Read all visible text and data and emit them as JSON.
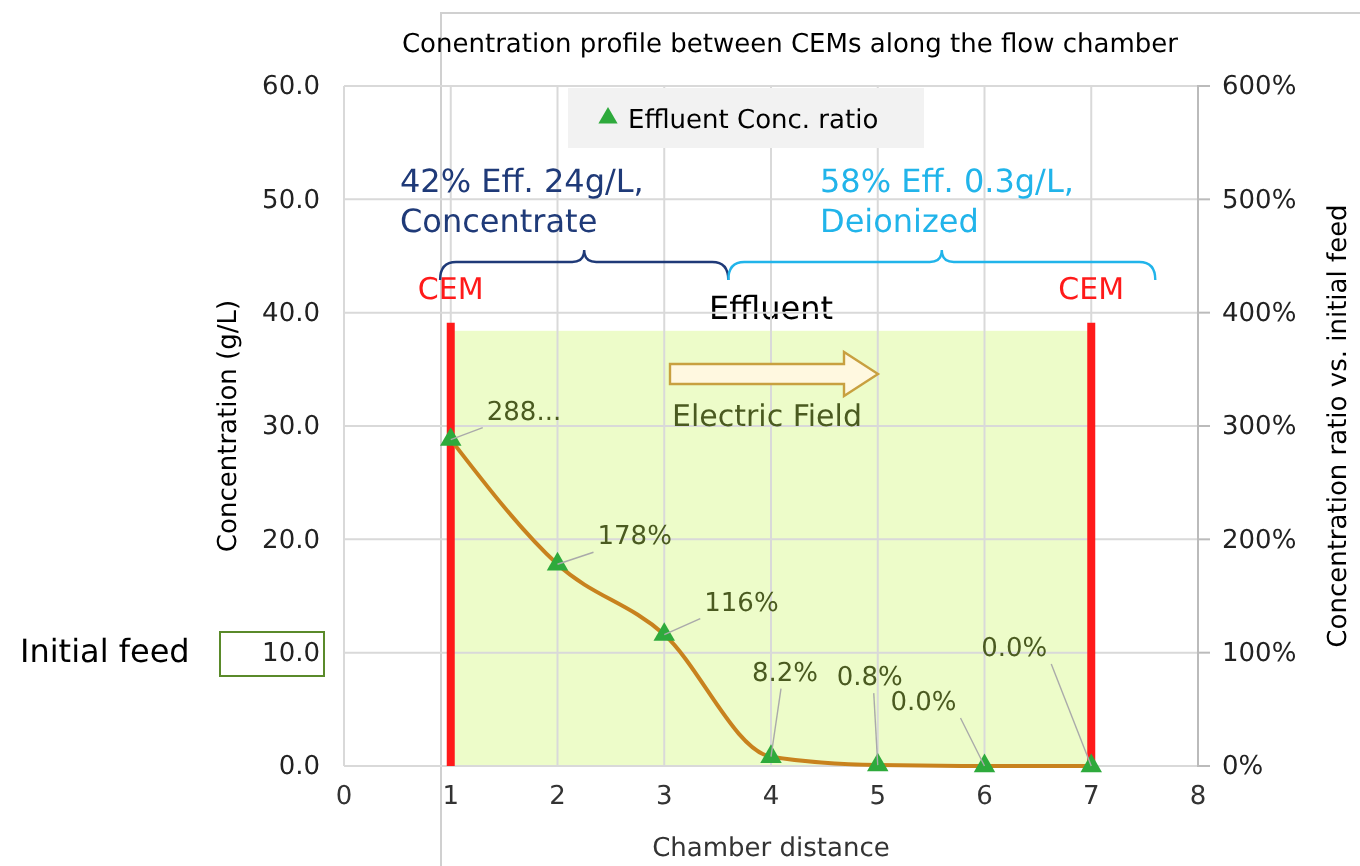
{
  "chart_data": {
    "type": "line",
    "title": "Conentration profile between CEMs along the flow chamber",
    "xlabel": "Chamber distance",
    "ylabel": "Concentration (g/L)",
    "y2label": "Concentration ratio vs. initial feed",
    "x": [
      1,
      2,
      3,
      4,
      5,
      6,
      7
    ],
    "series": [
      {
        "type": "line",
        "color": "#c8821e",
        "marker": "none",
        "axis": "y2",
        "values": [
          288,
          178,
          116,
          8.2,
          0.8,
          0,
          0
        ]
      },
      {
        "type": "scatter",
        "name": "Effluent Conc. ratio",
        "color": "#2eaa3c",
        "marker": "triangle",
        "axis": "y2",
        "values": [
          288,
          178,
          116,
          8.2,
          0.8,
          0,
          0
        ],
        "value_labels": [
          "288...",
          "178%",
          "116%",
          "8.2%",
          "0.8%",
          "0.0%",
          "0.0%"
        ]
      }
    ],
    "xlim": [
      0,
      8
    ],
    "xticks": [
      0,
      1,
      2,
      3,
      4,
      5,
      6,
      7,
      8
    ],
    "ylim": [
      0,
      60
    ],
    "yticks": [
      {
        "value": 0,
        "label": "0.0"
      },
      {
        "value": 10,
        "label": "10.0"
      },
      {
        "value": 20,
        "label": "20.0"
      },
      {
        "value": 30,
        "label": "30.0"
      },
      {
        "value": 40,
        "label": "40.0"
      },
      {
        "value": 50,
        "label": "50.0"
      },
      {
        "value": 60,
        "label": "60.0"
      }
    ],
    "y2lim": [
      0,
      600
    ],
    "y2ticks": [
      {
        "value": 0,
        "label": "0%"
      },
      {
        "value": 100,
        "label": "100%"
      },
      {
        "value": 200,
        "label": "200%"
      },
      {
        "value": 300,
        "label": "300%"
      },
      {
        "value": 400,
        "label": "400%"
      },
      {
        "value": 500,
        "label": "500%"
      },
      {
        "value": 600,
        "label": "600%"
      }
    ],
    "bands": [
      {
        "axis": "x",
        "from": 1,
        "to": 7,
        "label": "Effluent",
        "color": "#edfcc9"
      }
    ],
    "ref_lines": [
      {
        "axis": "x",
        "value": 1,
        "label": "CEM",
        "color": "#ff1a1a"
      },
      {
        "axis": "x",
        "value": 7,
        "label": "CEM",
        "color": "#ff1a1a"
      }
    ],
    "annotations": [
      "42% Eff. 24g/L,\nConcentrate",
      "58% Eff. 0.3g/L,\nDeionized",
      "Electric Field",
      "Initial feed"
    ],
    "grid": true,
    "legend": "top"
  }
}
